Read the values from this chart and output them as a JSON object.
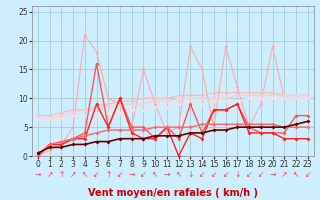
{
  "bg_color": "#cceeff",
  "grid_color": "#aacccc",
  "x": [
    0,
    1,
    2,
    3,
    4,
    5,
    6,
    7,
    8,
    9,
    10,
    11,
    12,
    13,
    14,
    15,
    16,
    17,
    18,
    19,
    20,
    21,
    22,
    23
  ],
  "lines": [
    {
      "y": [
        0,
        1,
        2,
        5,
        21,
        18,
        10,
        9,
        5,
        15,
        9,
        4,
        5,
        19,
        15,
        5,
        19,
        12,
        5,
        9,
        19,
        10,
        10,
        10
      ],
      "color": "#ffaaaa",
      "lw": 0.8,
      "marker": "D",
      "ms": 1.8,
      "zorder": 2
    },
    {
      "y": [
        7,
        7,
        7.5,
        8,
        8,
        8.5,
        9,
        9.5,
        9.5,
        10,
        10,
        10,
        10.5,
        10.5,
        10.5,
        11,
        11,
        11,
        11,
        11,
        11,
        10.5,
        10.5,
        10.5
      ],
      "color": "#ffbbbb",
      "lw": 0.9,
      "marker": "D",
      "ms": 1.8,
      "zorder": 2
    },
    {
      "y": [
        6.5,
        6.5,
        7,
        7.5,
        8,
        8,
        8.5,
        9,
        9,
        9,
        9.5,
        9.5,
        10,
        10,
        10,
        10,
        10,
        10.5,
        10.5,
        10.5,
        10.5,
        10.5,
        10.5,
        10.5
      ],
      "color": "#ffcccc",
      "lw": 0.9,
      "marker": "D",
      "ms": 1.8,
      "zorder": 2
    },
    {
      "y": [
        6.5,
        6.5,
        6.5,
        7,
        7,
        7,
        7.5,
        7.5,
        8,
        8,
        8.5,
        8.5,
        9,
        9,
        9,
        9.5,
        9.5,
        9.5,
        10,
        10,
        10,
        10,
        10,
        10
      ],
      "color": "#ffdddd",
      "lw": 0.9,
      "marker": "D",
      "ms": 1.8,
      "zorder": 2
    },
    {
      "y": [
        0,
        2,
        2,
        3,
        4,
        16,
        5,
        10,
        5,
        5,
        3,
        5,
        3,
        9,
        4,
        8,
        8,
        9,
        5,
        4,
        4,
        4,
        7,
        7
      ],
      "color": "#ff5555",
      "lw": 1.0,
      "marker": "D",
      "ms": 2.0,
      "zorder": 3
    },
    {
      "y": [
        0,
        2,
        2,
        3,
        3,
        9,
        5,
        10,
        4,
        3,
        3,
        5,
        0,
        4,
        3,
        8,
        8,
        9,
        4,
        4,
        4,
        3,
        3,
        3
      ],
      "color": "#ff2222",
      "lw": 1.0,
      "marker": "D",
      "ms": 2.0,
      "zorder": 3
    },
    {
      "y": [
        0.2,
        2,
        2.5,
        3,
        3.5,
        4,
        4.5,
        4.5,
        4.5,
        4.5,
        5,
        5,
        5,
        5,
        5.5,
        5.5,
        5.5,
        5.5,
        5.5,
        5.5,
        5.5,
        5,
        5,
        5
      ],
      "color": "#ff6666",
      "lw": 1.0,
      "marker": "D",
      "ms": 2.0,
      "zorder": 3
    },
    {
      "y": [
        0.5,
        1.5,
        1.5,
        2,
        2,
        2.5,
        2.5,
        3,
        3,
        3,
        3.5,
        3.5,
        3.5,
        4,
        4,
        4.5,
        4.5,
        5,
        5,
        5,
        5,
        5,
        5.5,
        6
      ],
      "color": "#660000",
      "lw": 1.2,
      "marker": "D",
      "ms": 2.0,
      "zorder": 4
    }
  ],
  "wind_arrows": [
    "→",
    "↗",
    "↑",
    "↗",
    "↖",
    "↙",
    "↑",
    "↙",
    "→",
    "↙",
    "↖",
    "→",
    "↖",
    "↓",
    "↙",
    "↙",
    "↙",
    "↓",
    "↙",
    "↙",
    "→",
    "↗",
    "↖",
    "↙"
  ],
  "xlabel": "Vent moyen/en rafales ( km/h )",
  "ylim": [
    0,
    26
  ],
  "xlim": [
    -0.5,
    23.5
  ],
  "yticks": [
    0,
    5,
    10,
    15,
    20,
    25
  ],
  "xticks": [
    0,
    1,
    2,
    3,
    4,
    5,
    6,
    7,
    8,
    9,
    10,
    11,
    12,
    13,
    14,
    15,
    16,
    17,
    18,
    19,
    20,
    21,
    22,
    23
  ],
  "tick_fontsize": 5.5,
  "label_fontsize": 7,
  "arrow_fontsize": 5.5
}
